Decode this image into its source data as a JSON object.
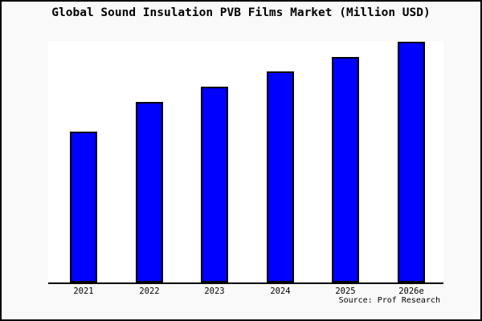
{
  "window": {
    "background_color": "#f9f9f9",
    "border_color": "#000000",
    "plot_background_color": "#ffffff"
  },
  "chart_data": {
    "type": "bar",
    "title": "Global Sound Insulation PVB Films Market (Million USD)",
    "categories": [
      "2021",
      "2022",
      "2023",
      "2024",
      "2025",
      "2026e"
    ],
    "values": [
      62.5,
      74.8,
      81.1,
      87.4,
      93.4,
      99.7
    ],
    "value_note": "estimated relative heights, % of plot height; y-axis has no tick labels",
    "ylim": [
      0,
      100
    ],
    "xlabel": "",
    "ylabel": "",
    "grid": false,
    "legend": "none",
    "bar_color": "#0000ff",
    "bar_border_color": "#000000",
    "axis_line_color": "#000000",
    "source_note": "Source: Prof Research"
  }
}
